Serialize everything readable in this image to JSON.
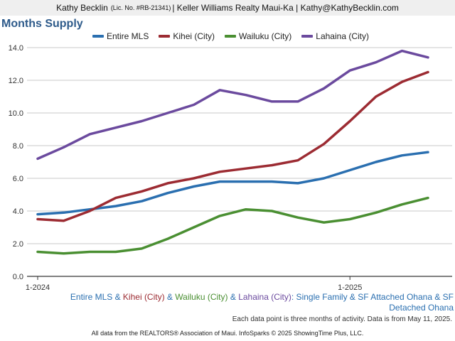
{
  "header": {
    "agent_name": "Kathy Becklin",
    "license": "(Lic. No. #RB-21341)",
    "rest": "| Keller Williams Realty Maui-Ka | Kathy@KathyBecklin.com"
  },
  "chart_data": {
    "type": "line",
    "title": "Months Supply",
    "xlabel": "",
    "ylabel": "",
    "x_tick_labels": [
      "1-2024",
      "1-2025"
    ],
    "ylim": [
      0,
      14
    ],
    "y_ticks": [
      "0.0",
      "2.0",
      "4.0",
      "6.0",
      "8.0",
      "10.0",
      "12.0",
      "14.0"
    ],
    "grid": true,
    "legend_position": "top",
    "series": [
      {
        "name": "Entire MLS",
        "color": "#2a6fb0",
        "values": [
          3.8,
          3.9,
          4.1,
          4.3,
          4.6,
          5.1,
          5.5,
          5.8,
          5.8,
          5.8,
          5.7,
          6.0,
          6.5,
          7.0,
          7.4,
          7.6
        ]
      },
      {
        "name": "Kihei (City)",
        "color": "#9c2b32",
        "values": [
          3.5,
          3.4,
          4.0,
          4.8,
          5.2,
          5.7,
          6.0,
          6.4,
          6.6,
          6.8,
          7.1,
          8.1,
          9.5,
          11.0,
          11.9,
          12.5
        ]
      },
      {
        "name": "Wailuku (City)",
        "color": "#4a8f32",
        "values": [
          1.5,
          1.4,
          1.5,
          1.5,
          1.7,
          2.3,
          3.0,
          3.7,
          4.1,
          4.0,
          3.6,
          3.3,
          3.5,
          3.9,
          4.4,
          4.8
        ]
      },
      {
        "name": "Lahaina (City)",
        "color": "#6b4a9e",
        "values": [
          7.2,
          7.9,
          8.7,
          9.1,
          9.5,
          10.0,
          10.5,
          11.4,
          11.1,
          10.7,
          10.7,
          11.5,
          12.6,
          13.1,
          13.8,
          13.4
        ]
      }
    ]
  },
  "caption": {
    "entire": "Entire MLS",
    "amp1": " & ",
    "kihei": "Kihei (City)",
    "amp2": " & ",
    "wailuku": "Wailuku (City)",
    "amp3": " & ",
    "lahaina": "Lahaina (City)",
    "rest": ": Single Family & SF Attached Ohana & SF Detached Ohana"
  },
  "footnote": "Each data point is three months of activity. Data is from May 11, 2025.",
  "source": "All data from the REALTORS® Association of Maui. InfoSparks © 2025 ShowingTime Plus, LLC."
}
